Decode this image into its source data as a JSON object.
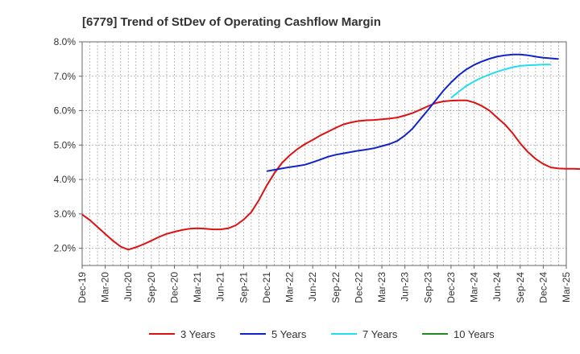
{
  "chart_data": {
    "type": "line",
    "title": "[6779]  Trend of StDev of Operating Cashflow Margin",
    "xlabel": "",
    "ylabel": "",
    "x_ticks": [
      "Dec-19",
      "Mar-20",
      "Jun-20",
      "Sep-20",
      "Dec-20",
      "Mar-21",
      "Jun-21",
      "Sep-21",
      "Dec-21",
      "Mar-22",
      "Jun-22",
      "Sep-22",
      "Dec-22",
      "Mar-23",
      "Jun-23",
      "Sep-23",
      "Dec-23",
      "Mar-24",
      "Jun-24",
      "Sep-24",
      "Dec-24",
      "Mar-25"
    ],
    "y_ticks": [
      "2.0%",
      "3.0%",
      "4.0%",
      "5.0%",
      "6.0%",
      "7.0%",
      "8.0%"
    ],
    "ylim": [
      1.5,
      8.0
    ],
    "grid": true,
    "legend_position": "bottom",
    "series": [
      {
        "name": "3 Years",
        "color": "#dd1111",
        "start_index": 0,
        "values": [
          2.98,
          2.82,
          2.62,
          2.42,
          2.22,
          2.05,
          1.96,
          2.03,
          2.12,
          2.22,
          2.33,
          2.42,
          2.48,
          2.53,
          2.57,
          2.58,
          2.57,
          2.55,
          2.55,
          2.58,
          2.67,
          2.83,
          3.05,
          3.4,
          3.82,
          4.18,
          4.48,
          4.7,
          4.88,
          5.03,
          5.15,
          5.28,
          5.39,
          5.5,
          5.6,
          5.66,
          5.7,
          5.72,
          5.73,
          5.75,
          5.77,
          5.8,
          5.86,
          5.93,
          6.03,
          6.13,
          6.22,
          6.27,
          6.29,
          6.3,
          6.3,
          6.24,
          6.14,
          6.0,
          5.8,
          5.6,
          5.35,
          5.05,
          4.8,
          4.6,
          4.45,
          4.35,
          4.32,
          4.31,
          4.31,
          4.3,
          4.28,
          4.26
        ]
      },
      {
        "name": "5 Years",
        "color": "#1122cc",
        "start_index": 24,
        "values": [
          4.24,
          4.28,
          4.32,
          4.36,
          4.39,
          4.43,
          4.5,
          4.58,
          4.66,
          4.72,
          4.76,
          4.8,
          4.84,
          4.87,
          4.91,
          4.97,
          5.03,
          5.12,
          5.28,
          5.48,
          5.75,
          6.02,
          6.3,
          6.58,
          6.82,
          7.03,
          7.2,
          7.33,
          7.43,
          7.51,
          7.57,
          7.61,
          7.63,
          7.63,
          7.61,
          7.57,
          7.54,
          7.52,
          7.5
        ]
      },
      {
        "name": "7 Years",
        "color": "#22ddee",
        "start_index": 48,
        "values": [
          6.37,
          6.55,
          6.72,
          6.85,
          6.96,
          7.05,
          7.13,
          7.2,
          7.26,
          7.3,
          7.32,
          7.33,
          7.34,
          7.34
        ]
      },
      {
        "name": "10 Years",
        "color": "#228822",
        "start_index": null,
        "values": []
      }
    ]
  }
}
